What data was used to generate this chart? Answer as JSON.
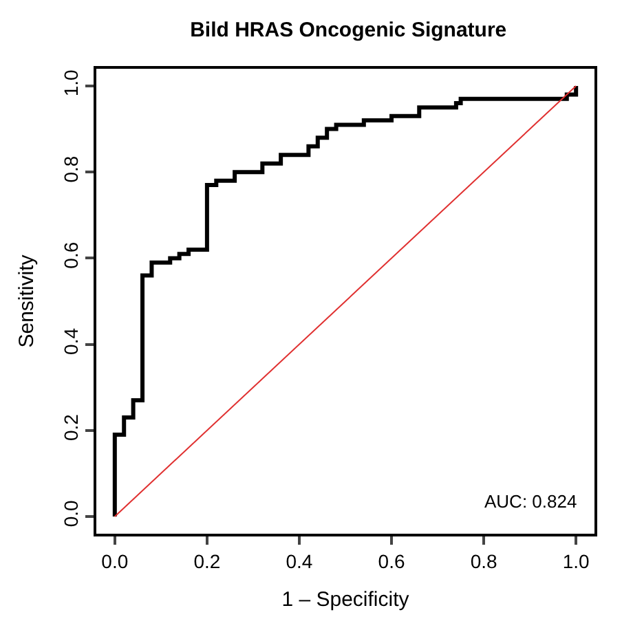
{
  "chart_data": {
    "type": "step",
    "title": "Bild HRAS Oncogenic Signature",
    "xlabel": "1 – Specificity",
    "ylabel": "Sensitivity",
    "series": [
      {
        "color": "#000000",
        "x": [
          0,
          0,
          0.02,
          0.04,
          0.06,
          0.08,
          0.12,
          0.14,
          0.16,
          0.2,
          0.22,
          0.26,
          0.32,
          0.36,
          0.42,
          0.44,
          0.46,
          0.48,
          0.54,
          0.6,
          0.66,
          0.74,
          0.75,
          0.84,
          0.98,
          1.0,
          1.0
        ],
        "values": [
          0,
          0.19,
          0.23,
          0.27,
          0.56,
          0.59,
          0.6,
          0.61,
          0.62,
          0.77,
          0.78,
          0.8,
          0.82,
          0.84,
          0.86,
          0.88,
          0.9,
          0.91,
          0.92,
          0.93,
          0.95,
          0.96,
          0.97,
          0.97,
          0.98,
          1.0,
          1.0
        ]
      },
      {
        "type": "line",
        "color": "#e03030",
        "x": [
          0,
          1
        ],
        "values": [
          0,
          1
        ]
      }
    ],
    "xlim": [
      -0.04,
      1.04
    ],
    "ylim": [
      -0.04,
      1.04
    ],
    "xticks": [
      {
        "value": 0,
        "label": "0.0"
      },
      0.2,
      0.4,
      0.6,
      0.8,
      {
        "value": 1,
        "label": "1.0"
      }
    ],
    "yticks": [
      {
        "value": 0,
        "label": "0.0"
      },
      0.2,
      0.4,
      0.6,
      0.8,
      {
        "value": 1,
        "label": "1.0"
      }
    ],
    "annotations": [
      "AUC: 0.824"
    ]
  }
}
